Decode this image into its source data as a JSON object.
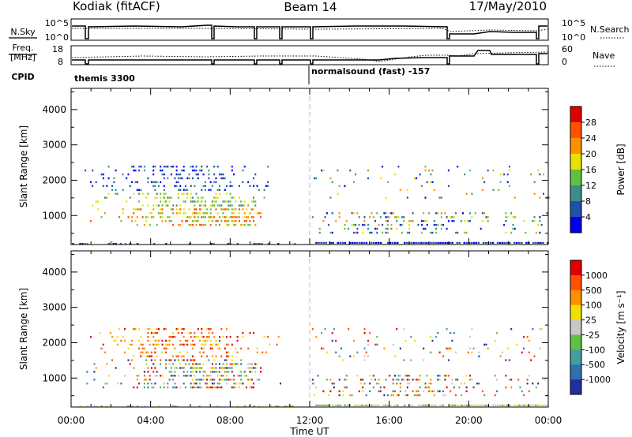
{
  "header": {
    "title_left": "Kodiak (fitACF)",
    "title_center": "Beam 14",
    "title_right": "17/May/2010"
  },
  "strip1": {
    "label_left": "N.Sky",
    "label_right": "N.Search",
    "y_ticks_left": [
      "10^5",
      "10^0"
    ],
    "y_ticks_right": [
      "10^5",
      "10^0"
    ]
  },
  "strip2": {
    "label_left_1": "Freq.",
    "label_left_2": "[MHz]",
    "label_right": "Nave",
    "y_ticks_left": [
      "18",
      "8"
    ],
    "y_ticks_right": [
      "60",
      "0"
    ]
  },
  "cpid": {
    "label": "CPID",
    "segments": [
      {
        "name": "themis 3300",
        "start_hour": 0
      },
      {
        "name": "normalsound (fast) -157",
        "start_hour": 12
      }
    ]
  },
  "chart_data": [
    {
      "type": "heatmap",
      "parameter": "Power",
      "ylabel": "Slant Range [km]",
      "ylim": [
        180,
        4600
      ],
      "y_ticks": [
        1000,
        2000,
        3000,
        4000
      ],
      "xlim": [
        0,
        24
      ],
      "x_ticks": [
        "00:00",
        "04:00",
        "08:00",
        "12:00",
        "16:00",
        "20:00",
        "00:00"
      ],
      "colorbar": {
        "label": "Power [dB]",
        "tick_labels": [
          "4",
          "8",
          "12",
          "16",
          "20",
          "24",
          "28"
        ],
        "colors": [
          "#0000ee",
          "#2050a8",
          "#3c8c8c",
          "#60c040",
          "#e8e000",
          "#ff9000",
          "#ff5000",
          "#e00000"
        ]
      }
    },
    {
      "type": "heatmap",
      "parameter": "Velocity",
      "ylabel": "Slant Range [km]",
      "ylim": [
        180,
        4600
      ],
      "y_ticks": [
        1000,
        2000,
        3000,
        4000
      ],
      "xlim": [
        0,
        24
      ],
      "x_ticks": [
        "00:00",
        "04:00",
        "08:00",
        "12:00",
        "16:00",
        "20:00",
        "00:00"
      ],
      "xlabel": "Time UT",
      "colorbar": {
        "label": "Velocity [m s⁻¹]",
        "tick_labels": [
          "1000",
          "500",
          "100",
          "25",
          "-25",
          "-100",
          "-500",
          "-1000"
        ],
        "colors": [
          "#2030a0",
          "#3070b0",
          "#40a0a0",
          "#60c040",
          "#c8c8c8",
          "#f0e000",
          "#ff9000",
          "#ff5000",
          "#e00000"
        ]
      }
    }
  ],
  "colors": {
    "gap_line": "#bbbbbb",
    "ground_scatter": "#8a8a8a"
  }
}
